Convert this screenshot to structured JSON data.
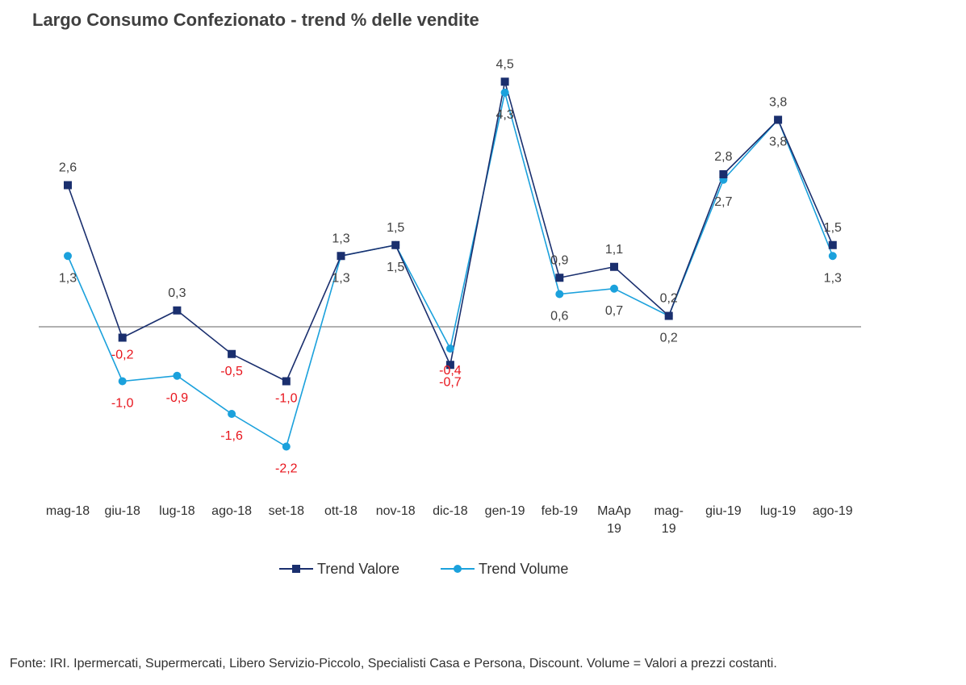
{
  "chart_data": {
    "type": "line",
    "title": "Largo Consumo Confezionato - trend % delle vendite",
    "categories": [
      [
        "mag-18"
      ],
      [
        "giu-18"
      ],
      [
        "lug-18"
      ],
      [
        "ago-18"
      ],
      [
        "set-18"
      ],
      [
        "ott-18"
      ],
      [
        "nov-18"
      ],
      [
        "dic-18"
      ],
      [
        "gen-19"
      ],
      [
        "feb-19"
      ],
      [
        "MaAp",
        "19"
      ],
      [
        "mag-",
        "19"
      ],
      [
        "giu-19"
      ],
      [
        "lug-19"
      ],
      [
        "ago-19"
      ]
    ],
    "series": [
      {
        "name": "Trend Valore",
        "color": "#1a2f6e",
        "marker": "square",
        "values": [
          2.6,
          -0.2,
          0.3,
          -0.5,
          -1.0,
          1.3,
          1.5,
          -0.7,
          4.5,
          0.9,
          1.1,
          0.2,
          2.8,
          3.8,
          1.5
        ],
        "labels": [
          "2,6",
          "-0,2",
          "0,3",
          "-0,5",
          "-1,0",
          "1,3",
          "1,5",
          "-0,7",
          "4,5",
          "0,9",
          "1,1",
          "0,2",
          "2,8",
          "3,8",
          "1,5"
        ]
      },
      {
        "name": "Trend Volume",
        "color": "#1ba1dc",
        "marker": "circle",
        "values": [
          1.3,
          -1.0,
          -0.9,
          -1.6,
          -2.2,
          1.3,
          1.5,
          -0.4,
          4.3,
          0.6,
          0.7,
          0.2,
          2.7,
          3.8,
          1.3
        ],
        "labels": [
          "1,3",
          "-1,0",
          "-0,9",
          "-1,6",
          "-2,2",
          "1,3",
          "1,5",
          "-0,4",
          "4,3",
          "0,6",
          "0,7",
          "0,2",
          "2,7",
          "3,8",
          "1,3"
        ]
      }
    ],
    "positive_label_color": "#404040",
    "negative_label_color": "#e8141c",
    "legend_position": "bottom",
    "grid": false
  },
  "source_note": "Fonte: IRI. Ipermercati, Supermercati, Libero Servizio-Piccolo,  Specialisti Casa e Persona, Discount.  Volume =  Valori a prezzi  costanti."
}
